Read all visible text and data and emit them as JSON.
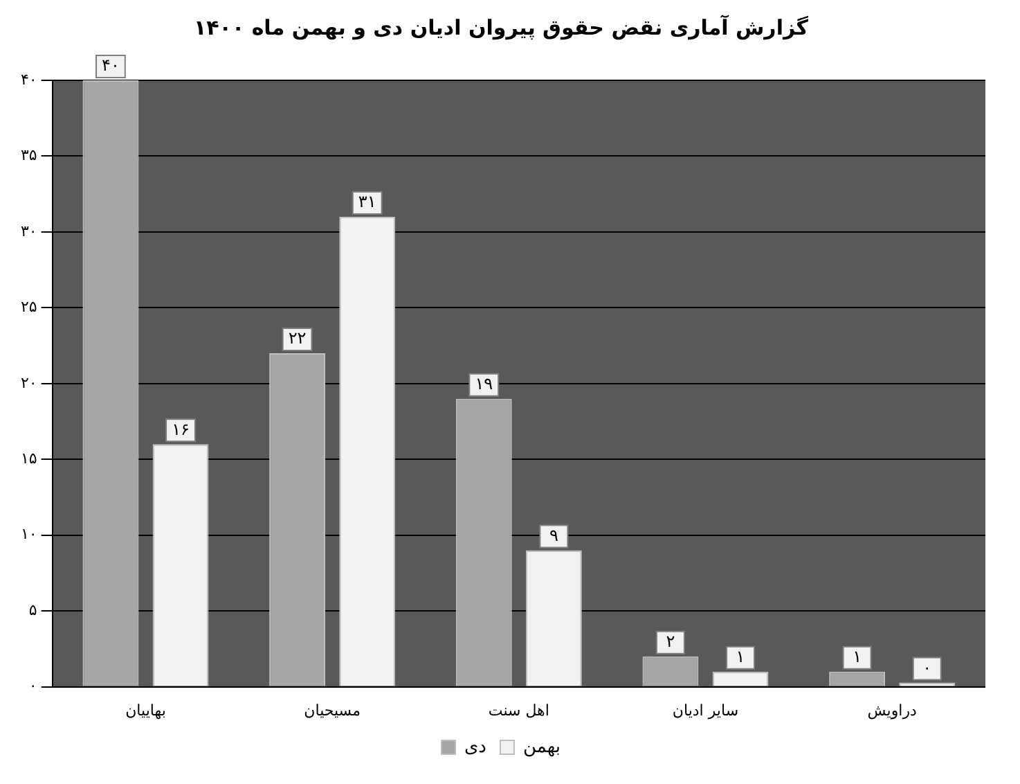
{
  "chart_data": {
    "type": "bar",
    "title": "گزارش آماری نقض حقوق پیروان ادیان دی و بهمن ماه ۱۴۰۰",
    "categories": [
      "بهاییان",
      "مسیحیان",
      "اهل سنت",
      "سایر ادیان",
      "دراویش"
    ],
    "series": [
      {
        "name": "دی",
        "color": "#a6a6a6",
        "values": [
          40,
          22,
          19,
          2,
          1
        ],
        "value_labels": [
          "۴۰",
          "۲۲",
          "۱۹",
          "۲",
          "۱"
        ]
      },
      {
        "name": "بهمن",
        "color": "#f2f2f2",
        "values": [
          16,
          31,
          9,
          1,
          0
        ],
        "value_labels": [
          "۱۶",
          "۳۱",
          "۹",
          "۱",
          "۰"
        ]
      }
    ],
    "ylim": [
      0,
      40
    ],
    "yticks": [
      {
        "value": 0,
        "label": "۰"
      },
      {
        "value": 5,
        "label": "۵"
      },
      {
        "value": 10,
        "label": "۱۰"
      },
      {
        "value": 15,
        "label": "۱۵"
      },
      {
        "value": 20,
        "label": "۲۰"
      },
      {
        "value": 25,
        "label": "۲۵"
      },
      {
        "value": 30,
        "label": "۳۰"
      },
      {
        "value": 35,
        "label": "۳۵"
      },
      {
        "value": 40,
        "label": "۴۰"
      }
    ],
    "grid": "y",
    "legend": "bottom"
  }
}
